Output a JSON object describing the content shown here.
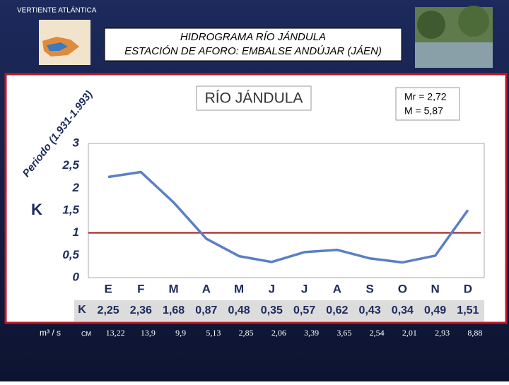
{
  "slide": {
    "section": "VERTIENTE ATLÁNTICA",
    "heading_1": "HIDROGRAMA RÍO JÁNDULA",
    "heading_2": "ESTACIÓN DE AFORO: EMBALSE ANDÚJAR (JÁEN)",
    "period": "Periodo (1.931-1.993)"
  },
  "chart_data": {
    "type": "line",
    "title": "RÍO JÁNDULA",
    "annotations": [
      "Mr = 2,72",
      "M = 5,87"
    ],
    "y_label": "K",
    "categories": [
      "E",
      "F",
      "M",
      "A",
      "M",
      "J",
      "J",
      "A",
      "S",
      "O",
      "N",
      "D"
    ],
    "series": [
      {
        "name": "K",
        "color": "#5b7fc4",
        "values": [
          2.25,
          2.36,
          1.68,
          0.87,
          0.48,
          0.35,
          0.57,
          0.62,
          0.43,
          0.34,
          0.49,
          1.51
        ],
        "value_labels": [
          "2,25",
          "2,36",
          "1,68",
          "0,87",
          "0,48",
          "0,35",
          "0,57",
          "0,62",
          "0,43",
          "0,34",
          "0,49",
          "1,51"
        ]
      }
    ],
    "reference_line": {
      "value": 1,
      "color": "#a01818"
    },
    "ylim": [
      0,
      3
    ],
    "yticks": [
      0,
      {
        "value": 0.5,
        "label": "0,5"
      },
      1,
      {
        "value": 1.5,
        "label": "1,5"
      },
      2,
      {
        "value": 2.5,
        "label": "2,5"
      },
      3
    ],
    "table_row": {
      "unit": "m³ / s",
      "name": "CM",
      "values": [
        13.22,
        13.9,
        9.9,
        5.13,
        2.85,
        2.06,
        3.39,
        3.65,
        2.54,
        2.01,
        2.93,
        8.88
      ],
      "value_labels": [
        "13,22",
        "13,9",
        "9,9",
        "5,13",
        "2,85",
        "2,06",
        "3,39",
        "3,65",
        "2,54",
        "2,01",
        "2,93",
        "8,88"
      ]
    }
  }
}
